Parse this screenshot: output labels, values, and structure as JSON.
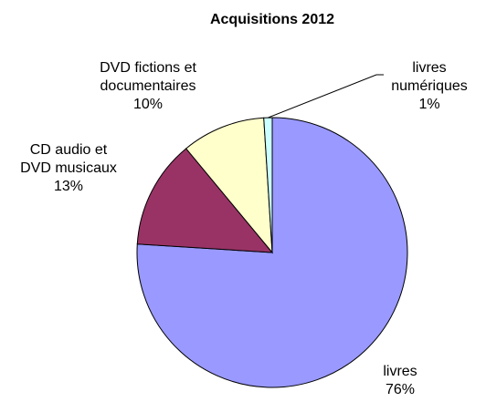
{
  "chart_data": {
    "type": "pie",
    "title": "Acquisitions 2012",
    "categories": [
      "livres",
      "CD audio et DVD musicaux",
      "DVD fictions et documentaires",
      "livres numériques"
    ],
    "values": [
      76,
      13,
      10,
      1
    ],
    "value_labels": [
      "76%",
      "13%",
      "10%",
      "1%"
    ],
    "colors": [
      "#9999ff",
      "#993366",
      "#ffffcc",
      "#ccffff"
    ]
  }
}
